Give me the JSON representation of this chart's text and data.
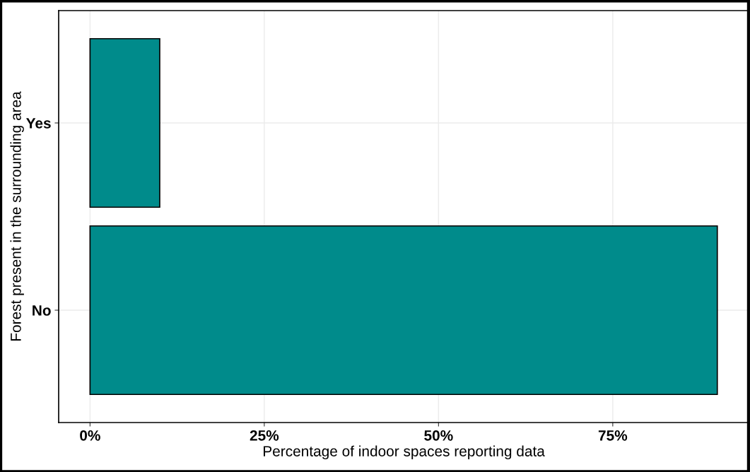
{
  "chart_data": {
    "type": "bar",
    "orientation": "horizontal",
    "categories": [
      "Yes",
      "No"
    ],
    "values": [
      10,
      90
    ],
    "color": "#008b8b",
    "xlabel": "Percentage of indoor spaces reporting data",
    "ylabel": "Forest present in the surrounding area",
    "xlim": [
      -4.5,
      94.5
    ],
    "xticks": [
      {
        "value": 0,
        "label": "0%"
      },
      {
        "value": 25,
        "label": "25%"
      },
      {
        "value": 50,
        "label": "50%"
      },
      {
        "value": 75,
        "label": "75%"
      }
    ],
    "grid": true
  }
}
